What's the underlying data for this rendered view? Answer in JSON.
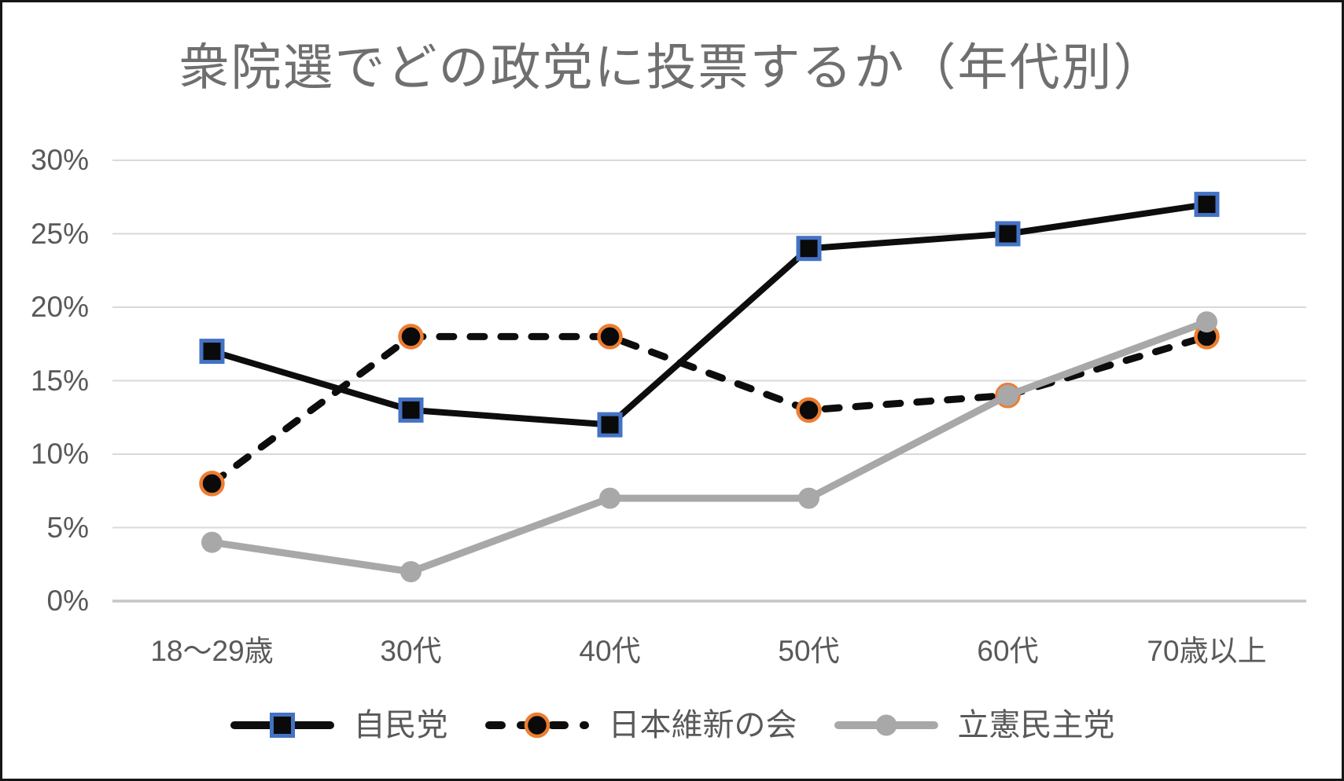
{
  "chart_data": {
    "type": "line",
    "title": "衆院選でどの政党に投票するか（年代別）",
    "categories": [
      "18〜29歳",
      "30代",
      "40代",
      "50代",
      "60代",
      "70歳以上"
    ],
    "series": [
      {
        "name": "自民党",
        "values": [
          17,
          13,
          12,
          24,
          25,
          27
        ],
        "line_style": "solid",
        "line_color": "#0d0d0d",
        "marker": "square",
        "marker_fill": "#0a0a0a",
        "marker_border": "#4472C4"
      },
      {
        "name": "日本維新の会",
        "values": [
          8,
          18,
          18,
          13,
          14,
          18
        ],
        "line_style": "dashed",
        "line_color": "#0d0d0d",
        "marker": "circle",
        "marker_fill": "#0a0a0a",
        "marker_border": "#ED7D31"
      },
      {
        "name": "立憲民主党",
        "values": [
          4,
          2,
          7,
          7,
          14,
          19
        ],
        "line_style": "solid",
        "line_color": "#A8A8A8",
        "marker": "circle",
        "marker_fill": "#A8A8A8",
        "marker_border": "#A8A8A8"
      }
    ],
    "y_tick_labels_top_down": [
      "30%",
      "25%",
      "20%",
      "15%",
      "10%",
      "5%",
      "0%"
    ],
    "y_tick_values_top_down": [
      30,
      25,
      20,
      15,
      10,
      5,
      0
    ],
    "ylim": [
      "0%",
      "30%"
    ],
    "xlabel": "",
    "ylabel": "",
    "grid": true,
    "legend_position": "bottom",
    "colors": {
      "background": "#ffffff",
      "frame_border": "#161616",
      "gridline": "#D9D9D9",
      "axis_line": "#C6C6C6",
      "title_text": "#6f6f6f",
      "axis_text": "#595959",
      "accent_blue": "#4472C4",
      "accent_orange": "#ED7D31",
      "series_gray": "#A8A8A8",
      "series_black": "#0d0d0d"
    }
  }
}
